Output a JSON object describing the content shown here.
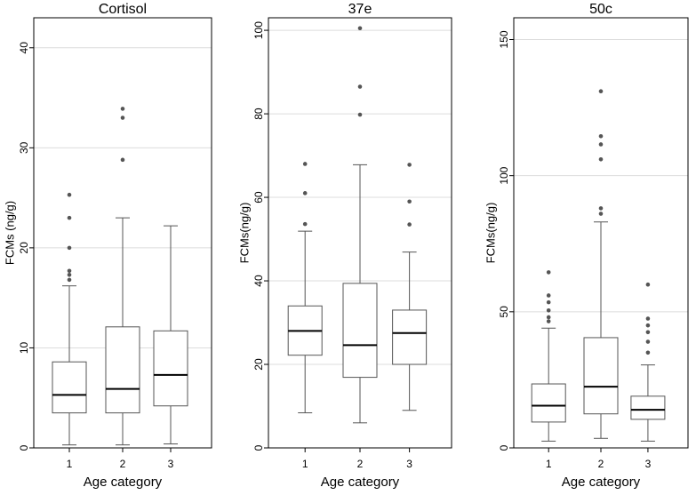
{
  "chart_data": [
    {
      "type": "box",
      "title": "Cortisol",
      "xlabel": "Age category",
      "ylabel": "FCMs (ng/g)",
      "ylim": [
        0,
        43
      ],
      "yticks": [
        0,
        10,
        20,
        30,
        40
      ],
      "grid": true,
      "categories": [
        "1",
        "2",
        "3"
      ],
      "boxes": [
        {
          "category": "1",
          "whisker_low": 0.3,
          "q1": 3.5,
          "median": 5.3,
          "q3": 8.6,
          "whisker_high": 16.2,
          "outliers": [
            16.8,
            17.3,
            17.7,
            20.0,
            23.0,
            25.3
          ]
        },
        {
          "category": "2",
          "whisker_low": 0.3,
          "q1": 3.5,
          "median": 5.9,
          "q3": 12.1,
          "whisker_high": 23.0,
          "outliers": [
            28.8,
            33.0,
            33.9
          ]
        },
        {
          "category": "3",
          "whisker_low": 0.4,
          "q1": 4.2,
          "median": 7.3,
          "q3": 11.7,
          "whisker_high": 22.2,
          "outliers": []
        }
      ]
    },
    {
      "type": "box",
      "title": "37e",
      "xlabel": "Age category",
      "ylabel": "FCMs(ng/g)",
      "ylim": [
        0,
        103
      ],
      "yticks": [
        0,
        20,
        40,
        60,
        80,
        100
      ],
      "grid": true,
      "categories": [
        "1",
        "2",
        "3"
      ],
      "boxes": [
        {
          "category": "1",
          "whisker_low": 8.4,
          "q1": 22.2,
          "median": 28.0,
          "q3": 34.0,
          "whisker_high": 51.9,
          "outliers": [
            53.6,
            61.0,
            68.0
          ]
        },
        {
          "category": "2",
          "whisker_low": 6.0,
          "q1": 16.9,
          "median": 24.6,
          "q3": 39.4,
          "whisker_high": 67.8,
          "outliers": [
            79.8,
            86.5,
            100.5
          ]
        },
        {
          "category": "3",
          "whisker_low": 9.0,
          "q1": 20.0,
          "median": 27.5,
          "q3": 33.0,
          "whisker_high": 46.9,
          "outliers": [
            53.5,
            59.0,
            67.8
          ]
        }
      ]
    },
    {
      "type": "box",
      "title": "50c",
      "xlabel": "Age category",
      "ylabel": "FCMs(ng/g)",
      "ylim": [
        0,
        158
      ],
      "yticks": [
        0,
        50,
        100,
        150
      ],
      "grid": true,
      "categories": [
        "1",
        "2",
        "3"
      ],
      "boxes": [
        {
          "category": "1",
          "whisker_low": 2.5,
          "q1": 9.5,
          "median": 15.5,
          "q3": 23.5,
          "whisker_high": 44.0,
          "outliers": [
            46.5,
            48.0,
            50.5,
            53.5,
            56.0,
            64.5
          ]
        },
        {
          "category": "2",
          "whisker_low": 3.5,
          "q1": 12.5,
          "median": 22.5,
          "q3": 40.5,
          "whisker_high": 83.0,
          "outliers": [
            86.0,
            88.0,
            106.0,
            111.5,
            114.5,
            131.0
          ]
        },
        {
          "category": "3",
          "whisker_low": 2.5,
          "q1": 10.5,
          "median": 14.0,
          "q3": 19.0,
          "whisker_high": 30.5,
          "outliers": [
            35.0,
            39.0,
            42.5,
            45.0,
            47.5,
            60.0
          ]
        }
      ]
    }
  ]
}
